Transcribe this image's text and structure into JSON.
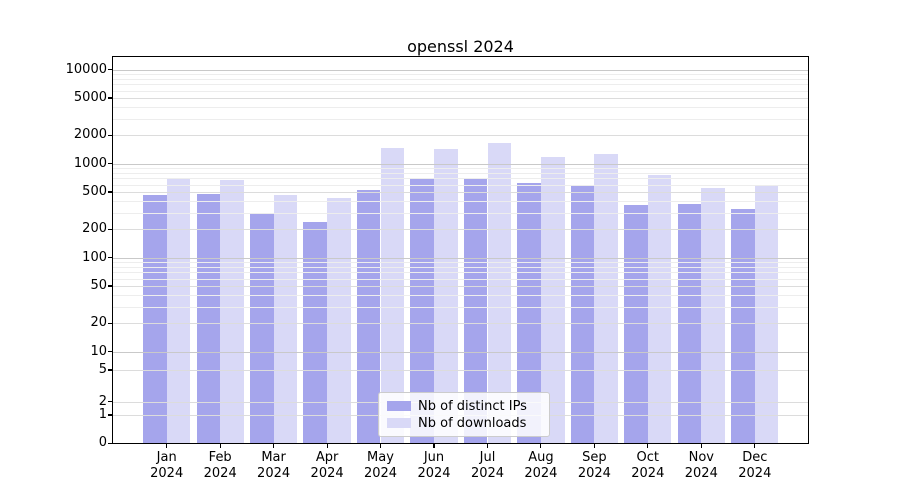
{
  "chart_data": {
    "type": "bar",
    "title": "openssl 2024",
    "categories": [
      "Jan 2024",
      "Feb 2024",
      "Mar 2024",
      "Apr 2024",
      "May 2024",
      "Jun 2024",
      "Jul 2024",
      "Aug 2024",
      "Sep 2024",
      "Oct 2024",
      "Nov 2024",
      "Dec 2024"
    ],
    "series": [
      {
        "name": "Nb of distinct IPs",
        "color": "#a5a5ec",
        "values": [
          460,
          480,
          295,
          240,
          530,
          700,
          700,
          620,
          590,
          360,
          375,
          330
        ]
      },
      {
        "name": "Nb of downloads",
        "color": "#d9d9f7",
        "values": [
          700,
          670,
          460,
          430,
          1460,
          1430,
          1650,
          1170,
          1280,
          760,
          555,
          580
        ]
      }
    ],
    "xlabel": "",
    "ylabel": "",
    "yscale": "symlog",
    "y_ticks": [
      0,
      1,
      2,
      5,
      10,
      20,
      50,
      100,
      200,
      500,
      1000,
      2000,
      5000,
      10000
    ],
    "ylim": [
      0,
      13600
    ],
    "grid": "horizontal",
    "legend_position": "lower center"
  }
}
